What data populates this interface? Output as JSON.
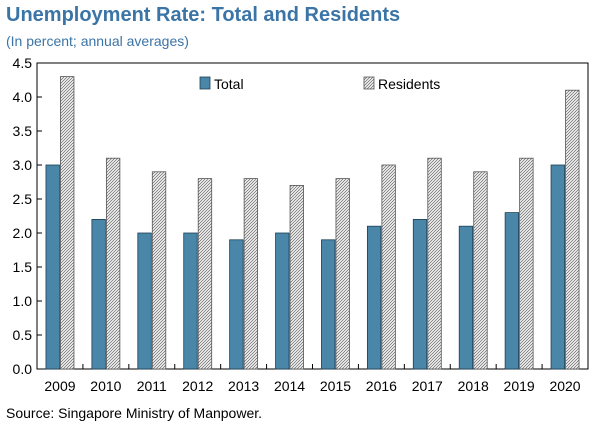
{
  "title": "Unemployment Rate: Total and Residents",
  "subtitle": "(In percent; annual averages)",
  "source": "Source: Singapore Ministry of Manpower.",
  "colors": {
    "total": "#4a86a8",
    "total_stroke": "#1f3f55",
    "residents_hatch": "#777777",
    "title": "#3b74a6"
  },
  "chart_data": {
    "type": "bar",
    "categories": [
      "2009",
      "2010",
      "2011",
      "2012",
      "2013",
      "2014",
      "2015",
      "2016",
      "2017",
      "2018",
      "2019",
      "2020"
    ],
    "series": [
      {
        "name": "Total",
        "values": [
          3.0,
          2.2,
          2.0,
          2.0,
          1.9,
          2.0,
          1.9,
          2.1,
          2.2,
          2.1,
          2.3,
          3.0
        ]
      },
      {
        "name": "Residents",
        "values": [
          4.3,
          3.1,
          2.9,
          2.8,
          2.8,
          2.7,
          2.8,
          3.0,
          3.1,
          2.9,
          3.1,
          4.1
        ]
      }
    ],
    "ylim": [
      0,
      4.5
    ],
    "yticks": [
      "0.0",
      "0.5",
      "1.0",
      "1.5",
      "2.0",
      "2.5",
      "3.0",
      "3.5",
      "4.0",
      "4.5"
    ],
    "legend_position": "top-center",
    "grid": false
  }
}
